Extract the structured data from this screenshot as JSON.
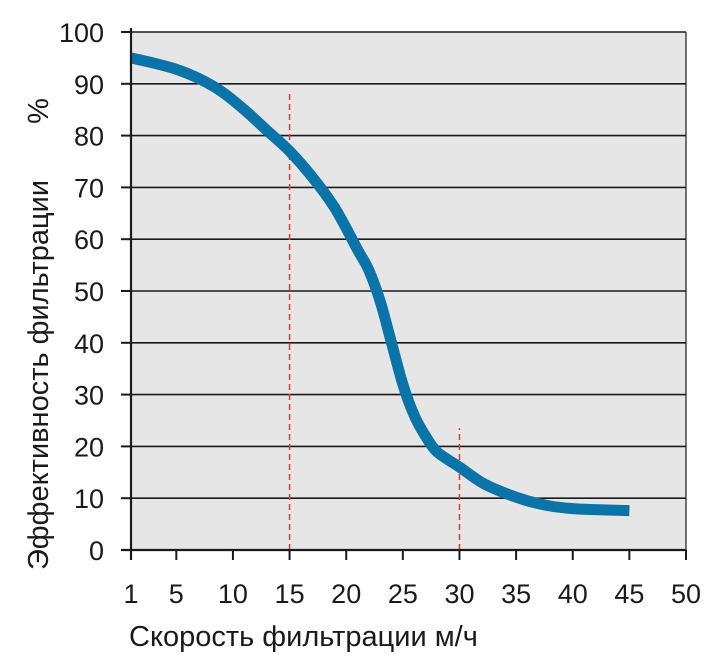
{
  "chart_data": {
    "type": "line",
    "xlabel": "Скорость фильтрации м/ч",
    "ylabel": "Эффективность фильтрации",
    "yunit": "%",
    "xlim": [
      1,
      50
    ],
    "ylim": [
      0,
      100
    ],
    "x_ticks": [
      1,
      5,
      10,
      15,
      20,
      25,
      30,
      35,
      40,
      45,
      50
    ],
    "y_ticks": [
      0,
      10,
      20,
      30,
      40,
      50,
      60,
      70,
      80,
      90,
      100
    ],
    "grid": "horizontal",
    "series": [
      {
        "color": "#0a73a8",
        "x": [
          1,
          3,
          5,
          7,
          9,
          11,
          13,
          15,
          17,
          19,
          21,
          22,
          23,
          24,
          25,
          26,
          27,
          28,
          30,
          32,
          34,
          36,
          38,
          40,
          42,
          45
        ],
        "y": [
          95,
          94,
          92.8,
          91,
          88.5,
          85,
          81,
          77,
          72,
          66,
          58,
          54,
          48,
          40,
          32,
          26,
          22,
          19,
          16,
          13,
          11,
          9.5,
          8.5,
          8,
          7.8,
          7.6
        ]
      }
    ],
    "reference_lines": [
      {
        "x": 15,
        "y_to": 88.5,
        "color": "#d9443a",
        "style": "dashed"
      },
      {
        "x": 30,
        "y_to": 23.5,
        "color": "#d9443a",
        "style": "dashed"
      }
    ],
    "colors": {
      "plot_background": "#e6e6e6",
      "gridline": "#1a1a1a"
    }
  }
}
